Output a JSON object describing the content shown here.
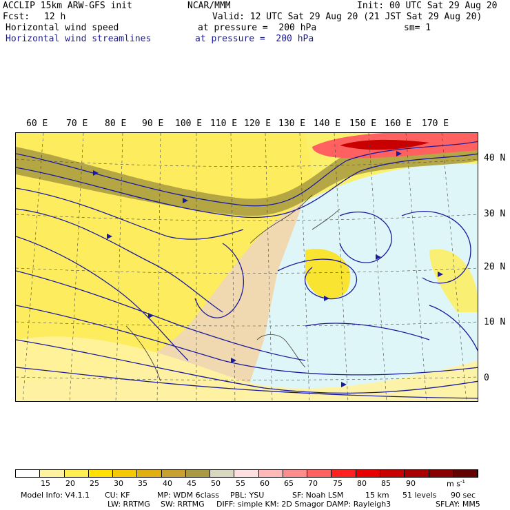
{
  "header": {
    "model": "ACCLIP 15km ARW-GFS init",
    "org": "NCAR/MMM",
    "init": "Init: 00 UTC Sat 29 Aug 20",
    "fcst_label": "Fcst:",
    "fcst_value": "12 h",
    "valid": "Valid: 12 UTC Sat 29 Aug 20 (21 JST Sat 29 Aug 20)",
    "field1": "Horizontal wind speed",
    "field1_level": "at pressure =  200 hPa",
    "sm": "sm= 1",
    "field2": "Horizontal wind streamlines",
    "field2_level": "at pressure =  200 hPa"
  },
  "longitude_labels": [
    "60 E",
    "70 E",
    "80 E",
    "90 E",
    "100 E",
    "110 E",
    "120 E",
    "130 E",
    "140 E",
    "150 E",
    "160 E",
    "170 E"
  ],
  "latitude_labels": [
    "40 N",
    "30 N",
    "20 N",
    "10 N",
    "0"
  ],
  "colorbar": {
    "colors": [
      "#ffffff",
      "#fff3a0",
      "#ffee50",
      "#ffe000",
      "#f5c800",
      "#e0b010",
      "#c8a030",
      "#a89a40",
      "#d8d8c0",
      "#ffe0e0",
      "#ffb8b8",
      "#ff8c8c",
      "#ff6060",
      "#ff2020",
      "#e80000",
      "#c80000",
      "#a80000",
      "#880000",
      "#640000"
    ],
    "ticks": [
      "15",
      "20",
      "25",
      "30",
      "35",
      "40",
      "45",
      "50",
      "55",
      "60",
      "65",
      "70",
      "75",
      "80",
      "85",
      "90"
    ],
    "units": "m s"
  },
  "footer": {
    "line1": {
      "model_info": "Model Info: V4.1.1",
      "cu": "CU: KF",
      "mp": "MP: WDM 6class",
      "pbl": "PBL: YSU",
      "sf": "SF: Noah LSM",
      "res": "15 km",
      "levels": "51 levels",
      "dt": "90 sec"
    },
    "line2": {
      "lw": "LW: RRTMG",
      "sw": "SW: RRTMG",
      "diff": "DIFF: simple KM: 2D Smagor DAMP: Rayleigh3",
      "sflay": "SFLAY: MM5"
    }
  }
}
